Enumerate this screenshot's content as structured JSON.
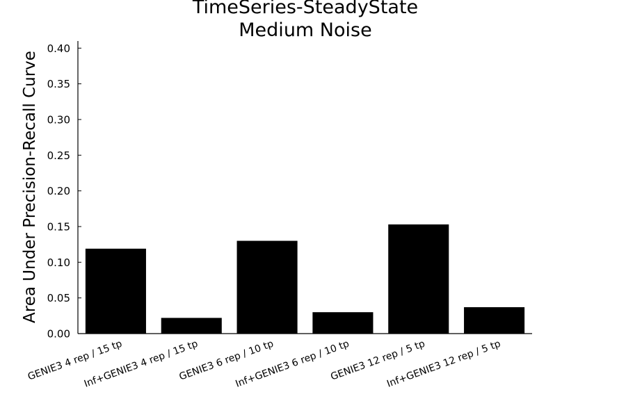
{
  "chart_data": {
    "type": "bar",
    "title": [
      "TimeSeries-SteadyState",
      "Medium Noise"
    ],
    "xlabel": "",
    "ylabel": "Area Under Precision-Recall Curve",
    "categories": [
      "GENIE3 4 rep / 15 tp",
      "Inf+GENIE3 4 rep / 15 tp",
      "GENIE3 6 rep / 10 tp",
      "Inf+GENIE3 6 rep / 10 tp",
      "GENIE3 12 rep / 5 tp",
      "Inf+GENIE3 12 rep / 5 tp"
    ],
    "values": [
      0.119,
      0.022,
      0.13,
      0.03,
      0.153,
      0.037
    ],
    "ylim": [
      0,
      0.41
    ],
    "yticks": [
      "0.00",
      "0.05",
      "0.10",
      "0.15",
      "0.20",
      "0.25",
      "0.30",
      "0.35",
      "0.40"
    ],
    "bar_color": "#000000",
    "grid": false,
    "legend": "none"
  }
}
